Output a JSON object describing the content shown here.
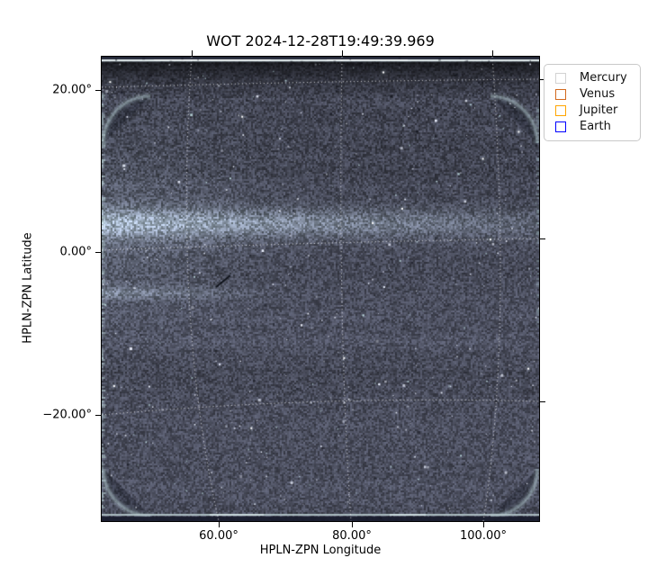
{
  "title": "WOT 2024-12-28T19:49:39.969",
  "axes": {
    "xlabel": "HPLN-ZPN Longitude",
    "ylabel": "HPLN-ZPN Latitude",
    "x_ticks": [
      "60.00°",
      "80.00°",
      "100.00°"
    ],
    "y_ticks": [
      "20.00°",
      "0.00°",
      "−20.00°"
    ]
  },
  "legend": {
    "entries": [
      {
        "label": "Mercury",
        "color": "#d3d3d3"
      },
      {
        "label": "Venus",
        "color": "#d2691e"
      },
      {
        "label": "Jupiter",
        "color": "#ffa500"
      },
      {
        "label": "Earth",
        "color": "#0000ff"
      }
    ]
  },
  "image_colors": {
    "field_base": "#474a63",
    "field_dark": "#171a26",
    "zodiacal_band": "#b7cdd0",
    "saturated_line": "#ebf4f6",
    "star": "#e9eefb",
    "graticule": "#ffffff",
    "frame": "#000000"
  },
  "chart_data": {
    "type": "heatmap",
    "title": "WOT 2024-12-28T19:49:39.969",
    "xlabel": "HPLN-ZPN Longitude",
    "ylabel": "HPLN-ZPN Latitude",
    "x_tick_labels_deg": [
      60,
      80,
      100
    ],
    "y_tick_labels_deg": [
      20,
      0,
      -20
    ],
    "xlim_deg": [
      42,
      108
    ],
    "ylim_deg": [
      -33,
      24
    ],
    "grid": "white dotted WCS graticule, curved ZPN projection lines",
    "legend_position": "upper right, outside axes",
    "legend_entries": [
      "Mercury",
      "Venus",
      "Jupiter",
      "Earth"
    ],
    "description": "Wide-field heliospheric imager frame: grainy dark slate-blue starfield with random stars, nearly black band along the top edge, saturated bright white row near the top edge and a lighter row near the bottom edge, rounded-corner vignette arcs, bright left-edge column, and a diffuse teal zodiacal-light band near latitude +3° strongest at the left and fading toward the right; no planet markers visible inside the field of view."
  }
}
